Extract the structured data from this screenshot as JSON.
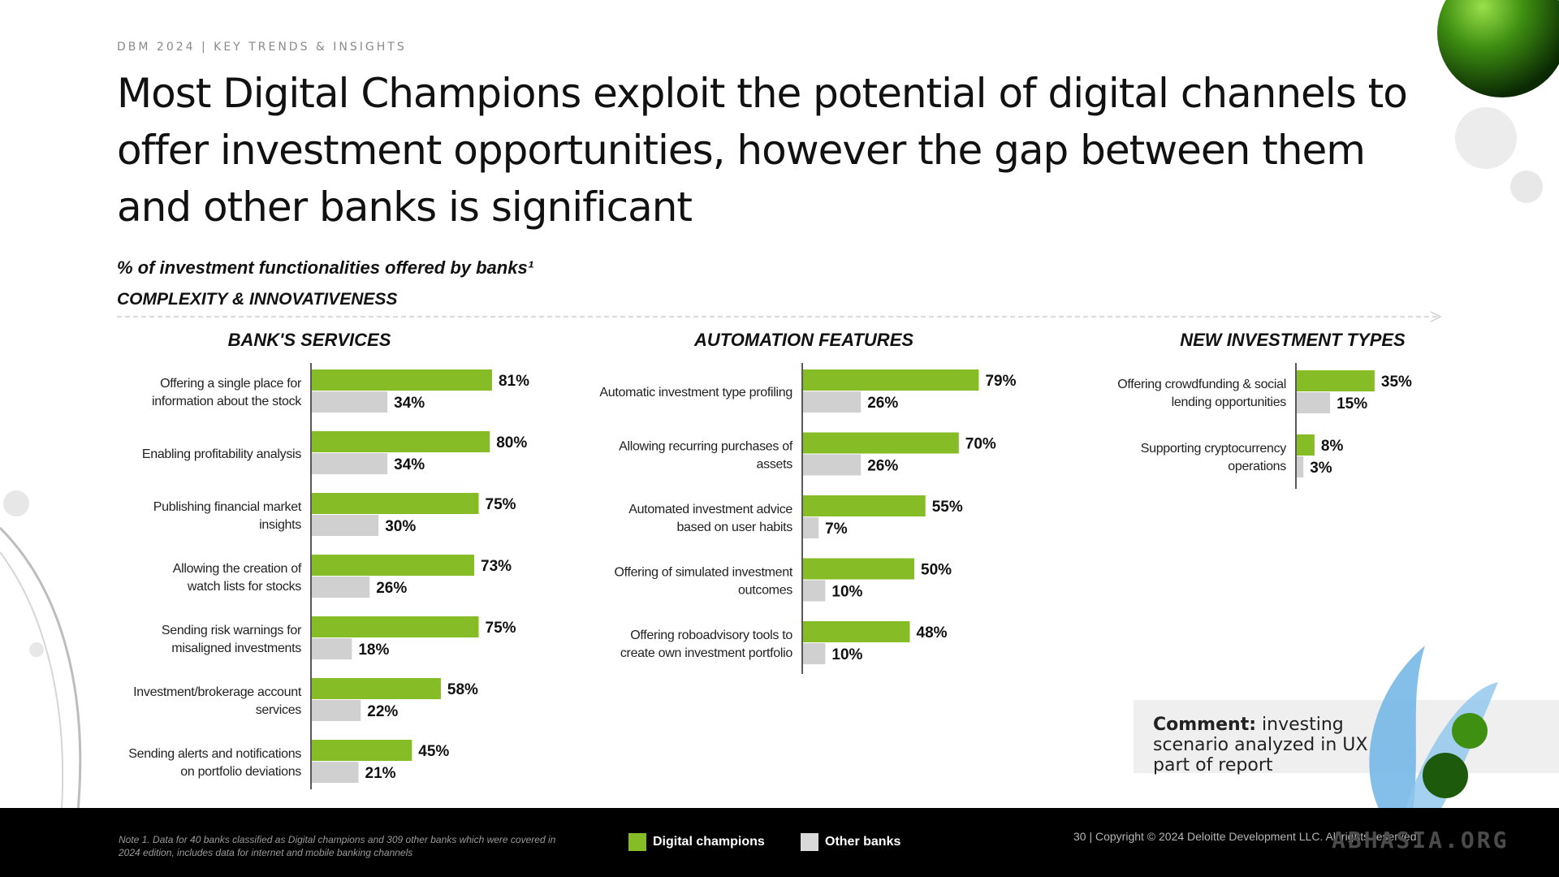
{
  "header": {
    "label": "DBM 2024 | KEY TRENDS & INSIGHTS",
    "title": "Most Digital Champions exploit the potential of digital channels to offer investment opportunities, however the gap between them and other banks is significant",
    "subtitle": "% of investment functionalities offered by banks¹",
    "complexity_label": "COMPLEXITY & INNOVATIVENESS"
  },
  "colors": {
    "champions": "#86bc25",
    "others": "#d0d0d0"
  },
  "chart_data": [
    {
      "type": "bar",
      "orientation": "horizontal",
      "title": "BANK'S SERVICES",
      "categories": [
        "Offering a single place for information about the stock",
        "Enabling profitability analysis",
        "Publishing financial market insights",
        "Allowing the creation of watch lists for stocks",
        "Sending risk warnings for misaligned investments",
        "Investment/brokerage account services",
        "Sending alerts and notifications on portfolio deviations"
      ],
      "category_lines": [
        [
          "Offering a single place for",
          "information about the stock"
        ],
        [
          "Enabling profitability analysis"
        ],
        [
          "Publishing financial market",
          "insights"
        ],
        [
          "Allowing the creation of",
          "watch lists for stocks"
        ],
        [
          "Sending risk warnings for",
          "misaligned investments"
        ],
        [
          "Investment/brokerage account",
          "services"
        ],
        [
          "Sending alerts and notifications",
          "on portfolio deviations"
        ]
      ],
      "series": [
        {
          "name": "Digital champions",
          "values": [
            81,
            80,
            75,
            73,
            75,
            58,
            45
          ]
        },
        {
          "name": "Other banks",
          "values": [
            34,
            34,
            30,
            26,
            18,
            22,
            21
          ]
        }
      ],
      "unit": "%"
    },
    {
      "type": "bar",
      "orientation": "horizontal",
      "title": "AUTOMATION FEATURES",
      "categories": [
        "Automatic investment type profiling",
        "Allowing recurring purchases of assets",
        "Automated investment advice based on user habits",
        "Offering of simulated investment outcomes",
        "Offering roboadvisory tools to create own investment portfolio"
      ],
      "category_lines": [
        [
          "Automatic investment type profiling"
        ],
        [
          "Allowing recurring purchases of",
          "assets"
        ],
        [
          "Automated investment advice",
          "based on user habits"
        ],
        [
          "Offering of simulated investment",
          "outcomes"
        ],
        [
          "Offering roboadvisory tools to",
          "create own investment portfolio"
        ]
      ],
      "series": [
        {
          "name": "Digital champions",
          "values": [
            79,
            70,
            55,
            50,
            48
          ]
        },
        {
          "name": "Other banks",
          "values": [
            26,
            26,
            7,
            10,
            10
          ]
        }
      ],
      "unit": "%"
    },
    {
      "type": "bar",
      "orientation": "horizontal",
      "title": "NEW INVESTMENT TYPES",
      "categories": [
        "Offering crowdfunding & social lending opportunities",
        "Supporting cryptocurrency operations"
      ],
      "category_lines": [
        [
          "Offering crowdfunding & social",
          "lending opportunities"
        ],
        [
          "Supporting cryptocurrency",
          "operations"
        ]
      ],
      "series": [
        {
          "name": "Digital champions",
          "values": [
            35,
            8
          ]
        },
        {
          "name": "Other banks",
          "values": [
            15,
            3
          ]
        }
      ],
      "unit": "%"
    }
  ],
  "comment": {
    "label": "Comment:",
    "text": " investing scenario analyzed in UX part of report"
  },
  "footer": {
    "note": "Note 1. Data for 40 banks classified as Digital champions and 309 other banks which were covered in 2024 edition, includes data for internet and mobile banking channels",
    "legend": {
      "champions": "Digital champions",
      "others": "Other banks"
    },
    "copyright": "30 | Copyright © 2024 Deloitte Development LLC. All rights reserved.",
    "watermark": "ABHASIA.ORG"
  }
}
